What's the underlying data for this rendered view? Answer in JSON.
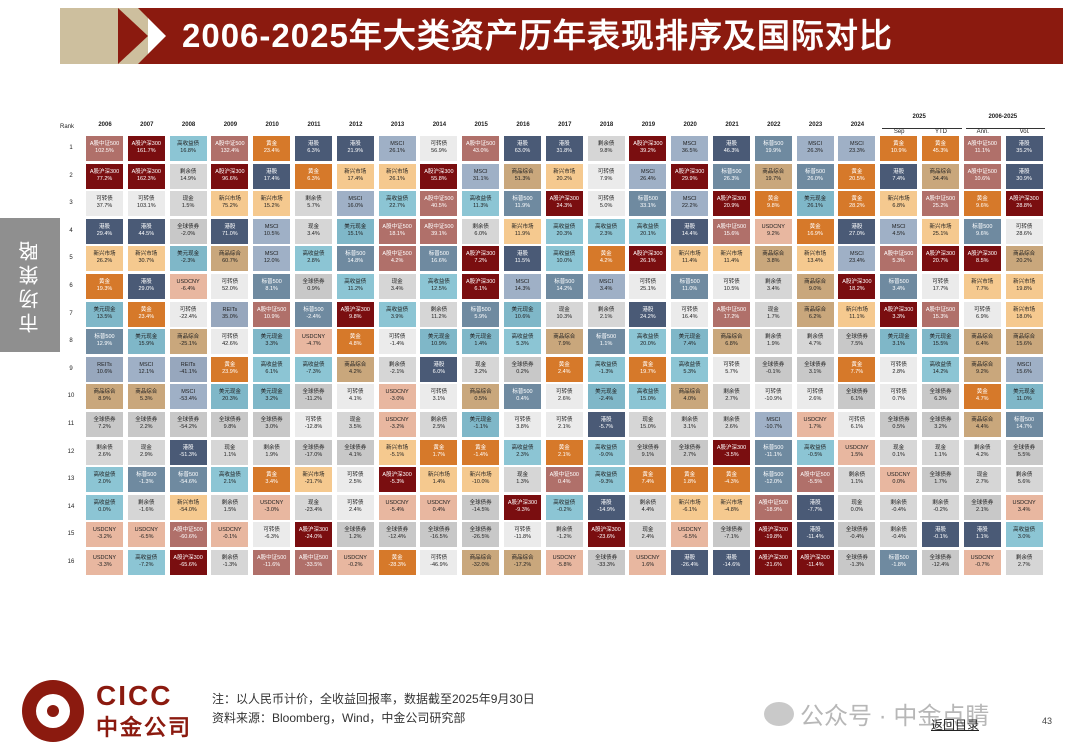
{
  "title": "2006-2025年大类资产历年表现排序及国际对比",
  "side_tab": "市场策略",
  "rank_header": "Rank",
  "years": [
    "2006",
    "2007",
    "2008",
    "2009",
    "2010",
    "2011",
    "2012",
    "2013",
    "2014",
    "2015",
    "2016",
    "2017",
    "2018",
    "2019",
    "2020",
    "2021",
    "2022",
    "2023",
    "2024"
  ],
  "group_2025": "2025",
  "sub_2025": [
    "Sep",
    "YTD"
  ],
  "group_range": "2006-2025",
  "sub_range": [
    "Ann.",
    "Vol."
  ],
  "ranks": [
    "1",
    "2",
    "3",
    "4",
    "5",
    "6",
    "7",
    "8",
    "9",
    "10",
    "11",
    "12",
    "13",
    "14",
    "15",
    "16"
  ],
  "palette": {
    "A股中证500": "#b0706a",
    "A股沪深300": "#7a0e10",
    "黄金": "#d6792a",
    "港股": "#4a5a76",
    "标普500": "#6f8aa0",
    "高收益债": "#8cc5d4",
    "现金": "#d6d6d6",
    "剩余债": "#d6d6d6",
    "可转债": "#ebebeb",
    "商品综合": "#c9a77c",
    "新兴市场": "#f5c98f",
    "美元现金": "#7fb7c8",
    "全球债券": "#c8c8c8",
    "USDCNY": "#e8b7a0",
    "REITs": "#97a7bd",
    "MSCI": "#9fb0c6"
  },
  "dark_assets": [
    "A股中证500",
    "A股沪深300",
    "港股",
    "黄金",
    "标普500"
  ],
  "columns": [
    [
      [
        "A股中证500",
        "102.5%"
      ],
      [
        "A股沪深300",
        "77.2%"
      ],
      [
        "可转债",
        "37.7%"
      ],
      [
        "港股",
        "29.4%"
      ],
      [
        "新兴市场",
        "26.2%"
      ],
      [
        "黄金",
        "19.3%"
      ],
      [
        "美元现金",
        "13.5%"
      ],
      [
        "标普500",
        "12.9%"
      ],
      [
        "REITs",
        "10.6%"
      ],
      [
        "商品综合",
        "8.9%"
      ],
      [
        "全球债券",
        "7.2%"
      ],
      [
        "剩余债",
        "2.6%"
      ],
      [
        "高收益债",
        "2.0%"
      ],
      [
        "高收益债",
        "0.0%"
      ],
      [
        "USDCNY",
        "-3.2%"
      ],
      [
        "USDCNY",
        "-3.3%"
      ]
    ],
    [
      [
        "A股沪深300",
        "161.7%"
      ],
      [
        "A股沪深300",
        "162.3%"
      ],
      [
        "可转债",
        "103.1%"
      ],
      [
        "港股",
        "44.5%"
      ],
      [
        "新兴市场",
        "30.7%"
      ],
      [
        "港股",
        "29.0%"
      ],
      [
        "黄金",
        "23.4%"
      ],
      [
        "美元现金",
        "15.9%"
      ],
      [
        "MSCI",
        "12.1%"
      ],
      [
        "商品综合",
        "5.3%"
      ],
      [
        "全球债券",
        "2.2%"
      ],
      [
        "现金",
        "2.9%"
      ],
      [
        "标普500",
        "-1.3%"
      ],
      [
        "剩余债",
        "-1.6%"
      ],
      [
        "USDCNY",
        "-6.5%"
      ],
      [
        "高收益债",
        "-7.2%"
      ]
    ],
    [
      [
        "高收益债",
        "16.8%"
      ],
      [
        "剩余债",
        "14.9%"
      ],
      [
        "现金",
        "1.5%"
      ],
      [
        "全球债券",
        "-2.0%"
      ],
      [
        "美元现金",
        "-2.3%"
      ],
      [
        "USDCNY",
        "-6.4%"
      ],
      [
        "可转债",
        "-22.4%"
      ],
      [
        "商品综合",
        "-25.1%"
      ],
      [
        "REITs",
        "-41.1%"
      ],
      [
        "MSCI",
        "-53.4%"
      ],
      [
        "全球债券",
        "-54.2%"
      ],
      [
        "港股",
        "-51.3%"
      ],
      [
        "标普500",
        "-54.6%"
      ],
      [
        "新兴市场",
        "-54.0%"
      ],
      [
        "A股中证500",
        "-60.6%"
      ],
      [
        "A股沪深300",
        "-65.6%"
      ]
    ],
    [
      [
        "A股中证500",
        "132.4%"
      ],
      [
        "A股沪深300",
        "96.6%"
      ],
      [
        "新兴市场",
        "75.2%"
      ],
      [
        "港股",
        "71.0%"
      ],
      [
        "商品综合",
        "60.7%"
      ],
      [
        "可转债",
        "52.0%"
      ],
      [
        "REITs",
        "35.0%"
      ],
      [
        "可转债",
        "42.6%"
      ],
      [
        "黄金",
        "23.9%"
      ],
      [
        "美元现金",
        "20.3%"
      ],
      [
        "全球债券",
        "9.8%"
      ],
      [
        "现金",
        "1.1%"
      ],
      [
        "高收益债",
        "2.1%"
      ],
      [
        "剩余债",
        "1.5%"
      ],
      [
        "USDCNY",
        "-0.1%"
      ],
      [
        "剩余债",
        "-1.3%"
      ]
    ],
    [
      [
        "黄金",
        "23.4%"
      ],
      [
        "港股",
        "17.4%"
      ],
      [
        "新兴市场",
        "15.2%"
      ],
      [
        "MSCI",
        "10.5%"
      ],
      [
        "MSCI",
        "12.0%"
      ],
      [
        "标普500",
        "8.1%"
      ],
      [
        "A股中证500",
        "10.9%"
      ],
      [
        "美元现金",
        "3.3%"
      ],
      [
        "高收益债",
        "6.1%"
      ],
      [
        "美元现金",
        "3.2%"
      ],
      [
        "全球债券",
        "3.0%"
      ],
      [
        "剩余债",
        "1.9%"
      ],
      [
        "黄金",
        "3.4%"
      ],
      [
        "USDCNY",
        "-3.0%"
      ],
      [
        "可转债",
        "-6.3%"
      ],
      [
        "A股中证500",
        "-11.6%"
      ]
    ],
    [
      [
        "港股",
        "6.3%"
      ],
      [
        "黄金",
        "6.3%"
      ],
      [
        "剩余债",
        "5.7%"
      ],
      [
        "现金",
        "3.4%"
      ],
      [
        "高收益债",
        "2.8%"
      ],
      [
        "全球债券",
        "0.9%"
      ],
      [
        "标普500",
        "-2.4%"
      ],
      [
        "USDCNY",
        "-4.7%"
      ],
      [
        "高收益债",
        "-7.3%"
      ],
      [
        "全球债券",
        "-11.2%"
      ],
      [
        "可转债",
        "-12.8%"
      ],
      [
        "全球债券",
        "-17.0%"
      ],
      [
        "新兴市场",
        "-21.7%"
      ],
      [
        "现金",
        "-23.4%"
      ],
      [
        "A股沪深300",
        "-24.0%"
      ],
      [
        "A股中证500",
        "-33.5%"
      ]
    ],
    [
      [
        "港股",
        "21.9%"
      ],
      [
        "新兴市场",
        "17.4%"
      ],
      [
        "MSCI",
        "16.0%"
      ],
      [
        "美元现金",
        "15.1%"
      ],
      [
        "标普500",
        "14.8%"
      ],
      [
        "高收益债",
        "11.2%"
      ],
      [
        "A股沪深300",
        "9.8%"
      ],
      [
        "黄金",
        "4.8%"
      ],
      [
        "商品综合",
        "4.2%"
      ],
      [
        "可转债",
        "4.1%"
      ],
      [
        "现金",
        "3.5%"
      ],
      [
        "全球债券",
        "4.1%"
      ],
      [
        "可转债",
        "2.5%"
      ],
      [
        "可转债",
        "2.4%"
      ],
      [
        "全球债券",
        "1.2%"
      ],
      [
        "USDCNY",
        "-0.2%"
      ]
    ],
    [
      [
        "MSCI",
        "26.1%"
      ],
      [
        "新兴市场",
        "26.1%"
      ],
      [
        "高收益债",
        "22.7%"
      ],
      [
        "A股中证500",
        "18.1%"
      ],
      [
        "A股中证500",
        "4.2%"
      ],
      [
        "现金",
        "3.4%"
      ],
      [
        "高收益债",
        "3.9%"
      ],
      [
        "可转债",
        "-1.4%"
      ],
      [
        "剩余债",
        "-2.1%"
      ],
      [
        "USDCNY",
        "-3.0%"
      ],
      [
        "USDCNY",
        "-3.2%"
      ],
      [
        "新兴市场",
        "-5.1%"
      ],
      [
        "A股沪深300",
        "-5.3%"
      ],
      [
        "USDCNY",
        "-5.4%"
      ],
      [
        "全球债券",
        "-12.4%"
      ],
      [
        "黄金",
        "-28.3%"
      ]
    ],
    [
      [
        "可转债",
        "56.9%"
      ],
      [
        "A股沪深300",
        "55.8%"
      ],
      [
        "A股中证500",
        "40.5%"
      ],
      [
        "A股中证500",
        "39.1%"
      ],
      [
        "标普500",
        "16.6%"
      ],
      [
        "高收益债",
        "12.5%"
      ],
      [
        "剩余债",
        "11.2%"
      ],
      [
        "美元现金",
        "10.9%"
      ],
      [
        "港股",
        "6.0%"
      ],
      [
        "可转债",
        "3.1%"
      ],
      [
        "剩余债",
        "2.5%"
      ],
      [
        "黄金",
        "1.7%"
      ],
      [
        "新兴市场",
        "1.4%"
      ],
      [
        "USDCNY",
        "0.4%"
      ],
      [
        "全球债券",
        "-16.5%"
      ],
      [
        "可转债",
        "-46.9%"
      ]
    ],
    [
      [
        "A股中证500",
        "43.0%"
      ],
      [
        "MSCI",
        "31.1%"
      ],
      [
        "高收益债",
        "11.3%"
      ],
      [
        "剩余债",
        "6.0%"
      ],
      [
        "A股沪深300",
        "7.2%"
      ],
      [
        "A股沪深300",
        "6.1%"
      ],
      [
        "标普500",
        "5.9%"
      ],
      [
        "美元现金",
        "1.4%"
      ],
      [
        "现金",
        "3.2%"
      ],
      [
        "商品综合",
        "0.5%"
      ],
      [
        "美元现金",
        "-1.1%"
      ],
      [
        "黄金",
        "-1.4%"
      ],
      [
        "新兴市场",
        "-10.0%"
      ],
      [
        "全球债券",
        "-14.5%"
      ],
      [
        "全球债券",
        "-26.5%"
      ],
      [
        "商品综合",
        "-32.0%"
      ]
    ],
    [
      [
        "港股",
        "63.0%"
      ],
      [
        "商品综合",
        "51.3%"
      ],
      [
        "标普500",
        "11.9%"
      ],
      [
        "新兴市场",
        "11.9%"
      ],
      [
        "港股",
        "11.5%"
      ],
      [
        "MSCI",
        "14.3%"
      ],
      [
        "美元现金",
        "10.6%"
      ],
      [
        "高收益债",
        "5.3%"
      ],
      [
        "全球债券",
        "0.2%"
      ],
      [
        "标普500",
        "0.4%"
      ],
      [
        "可转债",
        "3.8%"
      ],
      [
        "高收益债",
        "2.3%"
      ],
      [
        "现金",
        "1.3%"
      ],
      [
        "A股沪深300",
        "-9.3%"
      ],
      [
        "可转债",
        "-11.8%"
      ],
      [
        "商品综合",
        "-17.2%"
      ]
    ],
    [
      [
        "港股",
        "31.8%"
      ],
      [
        "新兴市场",
        "20.2%"
      ],
      [
        "A股沪深300",
        "24.3%"
      ],
      [
        "高收益债",
        "20.3%"
      ],
      [
        "高收益债",
        "10.0%"
      ],
      [
        "标普500",
        "14.2%"
      ],
      [
        "现金",
        "10.3%"
      ],
      [
        "商品综合",
        "7.9%"
      ],
      [
        "黄金",
        "2.4%"
      ],
      [
        "可转债",
        "2.6%"
      ],
      [
        "可转债",
        "2.1%"
      ],
      [
        "黄金",
        "2.1%"
      ],
      [
        "A股中证500",
        "0.4%"
      ],
      [
        "高收益债",
        "-0.2%"
      ],
      [
        "剩余债",
        "-1.2%"
      ],
      [
        "USDCNY",
        "-5.8%"
      ]
    ],
    [
      [
        "剩余债",
        "9.8%"
      ],
      [
        "可转债",
        "7.9%"
      ],
      [
        "可转债",
        "5.0%"
      ],
      [
        "高收益债",
        "2.3%"
      ],
      [
        "黄金",
        "4.2%"
      ],
      [
        "MSCI",
        "3.4%"
      ],
      [
        "剩余债",
        "2.1%"
      ],
      [
        "标普500",
        "1.1%"
      ],
      [
        "高收益债",
        "-1.3%"
      ],
      [
        "美元现金",
        "-2.4%"
      ],
      [
        "港股",
        "-5.7%"
      ],
      [
        "高收益债",
        "-9.0%"
      ],
      [
        "高收益债",
        "-9.3%"
      ],
      [
        "港股",
        "-14.9%"
      ],
      [
        "A股沪深300",
        "-23.6%"
      ],
      [
        "全球债券",
        "-33.3%"
      ]
    ],
    [
      [
        "A股沪深300",
        "39.2%"
      ],
      [
        "MSCI",
        "26.4%"
      ],
      [
        "标普500",
        "33.1%"
      ],
      [
        "高收益债",
        "20.1%"
      ],
      [
        "A股沪深300",
        "26.1%"
      ],
      [
        "可转债",
        "25.1%"
      ],
      [
        "港股",
        "24.2%"
      ],
      [
        "高收益债",
        "20.0%"
      ],
      [
        "黄金",
        "19.7%"
      ],
      [
        "高收益债",
        "15.0%"
      ],
      [
        "现金",
        "15.0%"
      ],
      [
        "全球债券",
        "9.1%"
      ],
      [
        "黄金",
        "7.4%"
      ],
      [
        "剩余债",
        "4.4%"
      ],
      [
        "现金",
        "2.4%"
      ],
      [
        "USDCNY",
        "1.6%"
      ]
    ],
    [
      [
        "MSCI",
        "36.5%"
      ],
      [
        "A股沪深300",
        "29.9%"
      ],
      [
        "MSCI",
        "22.2%"
      ],
      [
        "港股",
        "14.4%"
      ],
      [
        "新兴市场",
        "11.4%"
      ],
      [
        "标普500",
        "11.0%"
      ],
      [
        "可转债",
        "16.4%"
      ],
      [
        "美元现金",
        "7.4%"
      ],
      [
        "高收益债",
        "5.3%"
      ],
      [
        "商品综合",
        "4.0%"
      ],
      [
        "剩余债",
        "3.1%"
      ],
      [
        "全球债券",
        "2.7%"
      ],
      [
        "黄金",
        "1.8%"
      ],
      [
        "新兴市场",
        "-6.1%"
      ],
      [
        "USDCNY",
        "-6.5%"
      ],
      [
        "港股",
        "-26.4%"
      ]
    ],
    [
      [
        "港股",
        "46.3%"
      ],
      [
        "标普500",
        "26.3%"
      ],
      [
        "A股沪深300",
        "20.9%"
      ],
      [
        "A股中证500",
        "15.6%"
      ],
      [
        "新兴市场",
        "11.4%"
      ],
      [
        "可转债",
        "10.5%"
      ],
      [
        "A股中证500",
        "17.2%"
      ],
      [
        "商品综合",
        "6.8%"
      ],
      [
        "可转债",
        "5.7%"
      ],
      [
        "剩余债",
        "2.7%"
      ],
      [
        "剩余债",
        "2.6%"
      ],
      [
        "A股沪深300",
        "-3.5%"
      ],
      [
        "黄金",
        "-4.3%"
      ],
      [
        "新兴市场",
        "-4.8%"
      ],
      [
        "全球债券",
        "-7.1%"
      ],
      [
        "港股",
        "-14.6%"
      ]
    ],
    [
      [
        "标普500",
        "19.9%"
      ],
      [
        "商品综合",
        "19.7%"
      ],
      [
        "黄金",
        "9.8%"
      ],
      [
        "USDCNY",
        "9.2%"
      ],
      [
        "商品综合",
        "3.8%"
      ],
      [
        "剩余债",
        "3.4%"
      ],
      [
        "现金",
        "1.7%"
      ],
      [
        "剩余债",
        "1.9%"
      ],
      [
        "全球债券",
        "-0.1%"
      ],
      [
        "可转债",
        "-10.9%"
      ],
      [
        "MSCI",
        "-10.7%"
      ],
      [
        "标普500",
        "-11.1%"
      ],
      [
        "标普500",
        "-12.0%"
      ],
      [
        "A股中证500",
        "-18.9%"
      ],
      [
        "A股沪深300",
        "-19.8%"
      ],
      [
        "A股沪深300",
        "-21.6%"
      ]
    ],
    [
      [
        "MSCI",
        "26.3%"
      ],
      [
        "标普500",
        "26.0%"
      ],
      [
        "美元现金",
        "26.1%"
      ],
      [
        "黄金",
        "16.9%"
      ],
      [
        "新兴市场",
        "13.4%"
      ],
      [
        "商品综合",
        "9.0%"
      ],
      [
        "商品综合",
        "6.2%"
      ],
      [
        "剩余债",
        "4.7%"
      ],
      [
        "全球债券",
        "3.1%"
      ],
      [
        "可转债",
        "2.6%"
      ],
      [
        "USDCNY",
        "1.7%"
      ],
      [
        "高收益债",
        "-0.5%"
      ],
      [
        "A股中证500",
        "-5.5%"
      ],
      [
        "港股",
        "-7.7%"
      ],
      [
        "港股",
        "-11.4%"
      ],
      [
        "A股沪深300",
        "-11.4%"
      ]
    ],
    [
      [
        "MSCI",
        "23.3%"
      ],
      [
        "黄金",
        "20.5%"
      ],
      [
        "黄金",
        "28.2%"
      ],
      [
        "港股",
        "27.0%"
      ],
      [
        "MSCI",
        "23.4%"
      ],
      [
        "A股沪深300",
        "18.2%"
      ],
      [
        "新兴市场",
        "11.1%"
      ],
      [
        "全球债券",
        "7.5%"
      ],
      [
        "黄金",
        "7.7%"
      ],
      [
        "全球债券",
        "6.1%"
      ],
      [
        "可转债",
        "6.1%"
      ],
      [
        "USDCNY",
        "1.5%"
      ],
      [
        "剩余债",
        "1.1%"
      ],
      [
        "现金",
        "0.0%"
      ],
      [
        "全球债券",
        "-0.4%"
      ],
      [
        "全球债券",
        "-1.3%"
      ]
    ],
    [
      [
        "黄金",
        "10.9%"
      ],
      [
        "港股",
        "7.4%"
      ],
      [
        "新兴市场",
        "6.8%"
      ],
      [
        "MSCI",
        "4.5%"
      ],
      [
        "A股中证500",
        "5.3%"
      ],
      [
        "标普500",
        "3.4%"
      ],
      [
        "A股沪深300",
        "3.3%"
      ],
      [
        "美元现金",
        "3.1%"
      ],
      [
        "可转债",
        "2.8%"
      ],
      [
        "可转债",
        "0.7%"
      ],
      [
        "全球债券",
        "0.5%"
      ],
      [
        "现金",
        "0.1%"
      ],
      [
        "USDCNY",
        "0.0%"
      ],
      [
        "剩余债",
        "-0.4%"
      ],
      [
        "剩余债",
        "-0.4%"
      ],
      [
        "标普500",
        "-1.8%"
      ]
    ],
    [
      [
        "黄金",
        "45.3%"
      ],
      [
        "商品综合",
        "34.4%"
      ],
      [
        "A股中证500",
        "25.2%"
      ],
      [
        "新兴市场",
        "25.1%"
      ],
      [
        "A股沪深300",
        "20.7%"
      ],
      [
        "可转债",
        "17.7%"
      ],
      [
        "A股中证500",
        "15.3%"
      ],
      [
        "美元现金",
        "15.5%"
      ],
      [
        "高收益债",
        "14.2%"
      ],
      [
        "全球债券",
        "6.3%"
      ],
      [
        "全球债券",
        "3.2%"
      ],
      [
        "现金",
        "1.1%"
      ],
      [
        "全球债券",
        "1.7%"
      ],
      [
        "剩余债",
        "-0.2%"
      ],
      [
        "港股",
        "-0.1%"
      ],
      [
        "全球债券",
        "-12.4%"
      ]
    ],
    [
      [
        "A股中证500",
        "11.1%"
      ],
      [
        "A股中证500",
        "10.6%"
      ],
      [
        "黄金",
        "9.6%"
      ],
      [
        "标普500",
        "9.6%"
      ],
      [
        "A股沪深300",
        "8.5%"
      ],
      [
        "新兴市场",
        "7.7%"
      ],
      [
        "可转债",
        "6.9%"
      ],
      [
        "商品综合",
        "6.4%"
      ],
      [
        "商品综合",
        "9.2%"
      ],
      [
        "黄金",
        "4.7%"
      ],
      [
        "商品综合",
        "4.4%"
      ],
      [
        "剩余债",
        "4.2%"
      ],
      [
        "现金",
        "2.7%"
      ],
      [
        "全球债券",
        "2.1%"
      ],
      [
        "港股",
        "1.1%"
      ],
      [
        "USDCNY",
        "-0.7%"
      ]
    ],
    [
      [
        "港股",
        "35.2%"
      ],
      [
        "港股",
        "30.9%"
      ],
      [
        "A股沪深300",
        "28.8%"
      ],
      [
        "可转债",
        "28.6%"
      ],
      [
        "商品综合",
        "20.2%"
      ],
      [
        "新兴市场",
        "19.8%"
      ],
      [
        "新兴市场",
        "18.0%"
      ],
      [
        "商品综合",
        "15.6%"
      ],
      [
        "MSCI",
        "15.6%"
      ],
      [
        "美元现金",
        "11.0%"
      ],
      [
        "标普500",
        "14.7%"
      ],
      [
        "全球债券",
        "5.5%"
      ],
      [
        "剩余债",
        "5.6%"
      ],
      [
        "USDCNY",
        "3.4%"
      ],
      [
        "高收益债",
        "3.0%"
      ],
      [
        "剩余债",
        "2.7%"
      ]
    ]
  ],
  "footer": {
    "logo_en": "CICC",
    "logo_cn": "中金公司",
    "note1": "注：以人民币计价，全收益回报率，数据截至2025年9月30日",
    "note2": "资料来源：Bloomberg，Wind，中金公司研究部",
    "watermark": "公众号 · 中金点睛",
    "back_link": "返回目录",
    "page": "43"
  }
}
